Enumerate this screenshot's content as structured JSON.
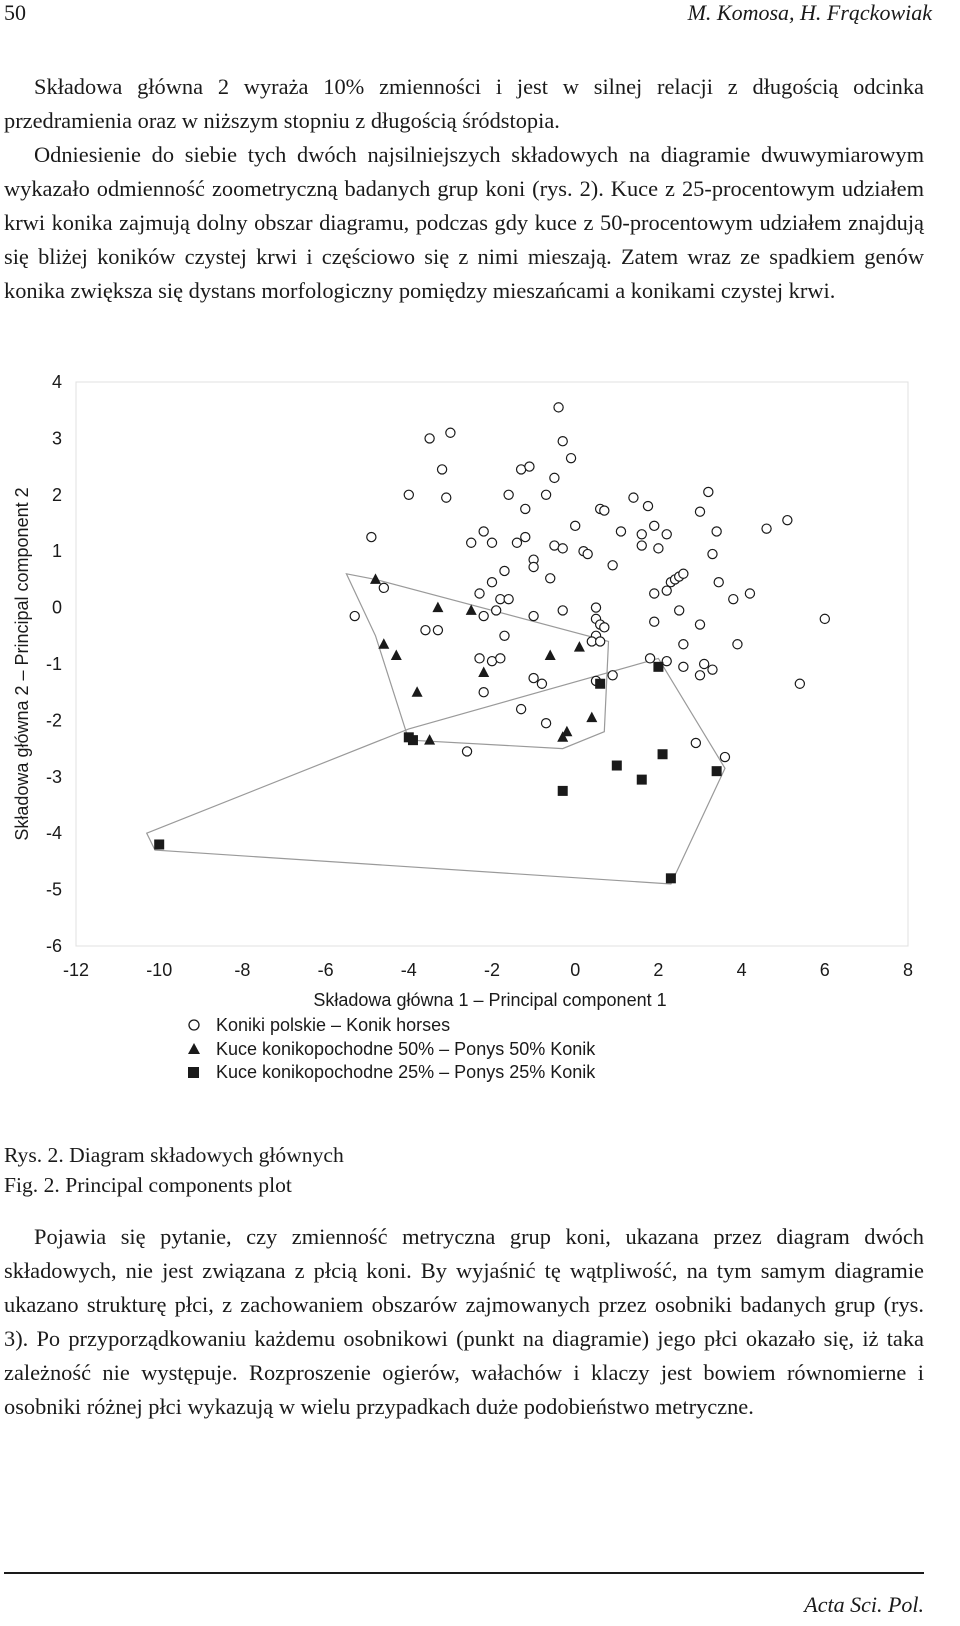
{
  "header": {
    "page_number": "50",
    "running_head": "M. Komosa, H. Frąckowiak"
  },
  "body": {
    "para1_lines": [
      "Składowa główna 2 wyraża 10% zmienności i jest w silnej relacji z długością odcinka przedramienia oraz w niższym stopniu z długością śródstopia.",
      "Odniesienie do siebie tych dwóch najsilniejszych składowych na diagramie dwuwymiarowym wykazało odmienność zoometryczną badanych grup koni (rys. 2). Kuce z 25-procentowym udziałem krwi konika zajmują dolny obszar diagramu, podczas gdy kuce z 50-procentowym udziałem znajdują się bliżej koników czystej krwi i częściowo się z nimi mieszają. Zatem wraz ze spadkiem genów konika zwiększa się dystans morfologiczny pomiędzy mieszańcami a konikami czystej krwi."
    ],
    "para2": "Pojawia się pytanie, czy zmienność metryczna grup koni, ukazana przez diagram dwóch składowych, nie jest związana z płcią koni. By wyjaśnić tę wątpliwość, na tym samym diagramie ukazano strukturę płci, z zachowaniem obszarów zajmowanych przez osobniki badanych grup (rys. 3). Po przyporządkowaniu każdemu osobnikowi (punkt na diagramie) jego płci okazało się, iż taka zależność nie występuje. Rozproszenie ogierów, wałachów i klaczy jest bowiem równomierne i osobniki różnej płci wykazują w wielu przypadkach duże podobieństwo metryczne."
  },
  "caption": {
    "pl": "Rys. 2. Diagram składowych głównych",
    "en": "Fig. 2. Principal components plot"
  },
  "footer": {
    "journal": "Acta Sci. Pol."
  },
  "chart_data": {
    "type": "scatter",
    "xlabel": "Składowa główna 1 – Principal  component 1",
    "ylabel": "Składowa główna 2 – Principal component 2",
    "xlim": [
      -12,
      8
    ],
    "ylim": [
      -6,
      4
    ],
    "xticks": [
      -12,
      -10,
      -8,
      -6,
      -4,
      -2,
      0,
      2,
      4,
      6,
      8
    ],
    "yticks": [
      4,
      3,
      2,
      1,
      0,
      -1,
      -2,
      -3,
      -4,
      -5,
      -6
    ],
    "grid": false,
    "legend_position": "bottom",
    "series": [
      {
        "name": "Koniki polskie – Konik horses",
        "marker": "circle-open",
        "points": [
          [
            -0.4,
            3.55
          ],
          [
            -3.5,
            3.0
          ],
          [
            -3.0,
            3.1
          ],
          [
            -0.3,
            2.95
          ],
          [
            -0.1,
            2.65
          ],
          [
            -3.2,
            2.45
          ],
          [
            -1.3,
            2.45
          ],
          [
            -1.1,
            2.5
          ],
          [
            -0.5,
            2.3
          ],
          [
            -4.0,
            2.0
          ],
          [
            -3.1,
            1.95
          ],
          [
            -1.6,
            2.0
          ],
          [
            -0.7,
            2.0
          ],
          [
            -1.2,
            1.75
          ],
          [
            0.6,
            1.75
          ],
          [
            0.7,
            1.72
          ],
          [
            1.4,
            1.95
          ],
          [
            1.75,
            1.8
          ],
          [
            3.2,
            2.05
          ],
          [
            3.0,
            1.7
          ],
          [
            5.1,
            1.55
          ],
          [
            4.6,
            1.4
          ],
          [
            3.4,
            1.35
          ],
          [
            1.1,
            1.35
          ],
          [
            0.0,
            1.45
          ],
          [
            1.6,
            1.3
          ],
          [
            1.9,
            1.45
          ],
          [
            2.2,
            1.3
          ],
          [
            -4.9,
            1.25
          ],
          [
            -2.2,
            1.35
          ],
          [
            -2.5,
            1.15
          ],
          [
            -2.0,
            1.15
          ],
          [
            -1.4,
            1.15
          ],
          [
            -1.2,
            1.25
          ],
          [
            -0.5,
            1.1
          ],
          [
            -0.3,
            1.05
          ],
          [
            0.2,
            1.0
          ],
          [
            0.3,
            0.95
          ],
          [
            1.6,
            1.1
          ],
          [
            2.0,
            1.05
          ],
          [
            3.3,
            0.95
          ],
          [
            -1.0,
            0.85
          ],
          [
            -1.0,
            0.72
          ],
          [
            -1.7,
            0.65
          ],
          [
            -0.6,
            0.52
          ],
          [
            0.9,
            0.75
          ],
          [
            3.45,
            0.45
          ],
          [
            -2.0,
            0.45
          ],
          [
            2.3,
            0.45
          ],
          [
            2.4,
            0.5
          ],
          [
            2.5,
            0.55
          ],
          [
            2.6,
            0.6
          ],
          [
            -4.6,
            0.35
          ],
          [
            -2.3,
            0.25
          ],
          [
            -1.8,
            0.15
          ],
          [
            -1.6,
            0.15
          ],
          [
            1.9,
            0.25
          ],
          [
            2.2,
            0.3
          ],
          [
            3.8,
            0.15
          ],
          [
            4.2,
            0.25
          ],
          [
            -1.9,
            -0.05
          ],
          [
            -2.2,
            -0.15
          ],
          [
            -1.0,
            -0.15
          ],
          [
            -0.3,
            -0.05
          ],
          [
            0.5,
            0.0
          ],
          [
            2.5,
            -0.05
          ],
          [
            0.5,
            -0.2
          ],
          [
            0.6,
            -0.3
          ],
          [
            0.7,
            -0.35
          ],
          [
            -5.3,
            -0.15
          ],
          [
            -3.6,
            -0.4
          ],
          [
            -3.3,
            -0.4
          ],
          [
            3.0,
            -0.3
          ],
          [
            1.9,
            -0.25
          ],
          [
            6.0,
            -0.2
          ],
          [
            -1.7,
            -0.5
          ],
          [
            0.5,
            -0.5
          ],
          [
            0.4,
            -0.6
          ],
          [
            0.6,
            -0.6
          ],
          [
            2.6,
            -0.65
          ],
          [
            3.9,
            -0.65
          ],
          [
            1.8,
            -0.9
          ],
          [
            2.2,
            -0.95
          ],
          [
            -2.3,
            -0.9
          ],
          [
            -2.0,
            -0.95
          ],
          [
            -1.8,
            -0.9
          ],
          [
            2.6,
            -1.05
          ],
          [
            3.1,
            -1.0
          ],
          [
            3.0,
            -1.2
          ],
          [
            3.3,
            -1.1
          ],
          [
            0.9,
            -1.2
          ],
          [
            0.5,
            -1.3
          ],
          [
            -1.0,
            -1.25
          ],
          [
            -0.8,
            -1.35
          ],
          [
            5.4,
            -1.35
          ],
          [
            -2.2,
            -1.5
          ],
          [
            -1.3,
            -1.8
          ],
          [
            -0.7,
            -2.05
          ],
          [
            -2.6,
            -2.55
          ],
          [
            2.9,
            -2.4
          ],
          [
            3.6,
            -2.65
          ]
        ]
      },
      {
        "name": "Kuce konikopochodne 50% – Ponys 50% Konik",
        "marker": "triangle-filled",
        "points": [
          [
            -4.8,
            0.5
          ],
          [
            -3.3,
            0.0
          ],
          [
            -2.5,
            -0.05
          ],
          [
            -4.6,
            -0.65
          ],
          [
            -4.3,
            -0.85
          ],
          [
            -3.8,
            -1.5
          ],
          [
            -2.2,
            -1.15
          ],
          [
            -0.6,
            -0.85
          ],
          [
            0.1,
            -0.7
          ],
          [
            0.4,
            -1.95
          ],
          [
            -0.2,
            -2.2
          ],
          [
            -0.3,
            -2.3
          ],
          [
            -3.5,
            -2.35
          ]
        ]
      },
      {
        "name": "Kuce konikopochodne 25% – Ponys 25% Konik",
        "marker": "square-filled",
        "points": [
          [
            -10.0,
            -4.2
          ],
          [
            -4.0,
            -2.3
          ],
          [
            -3.9,
            -2.35
          ],
          [
            2.0,
            -1.05
          ],
          [
            0.6,
            -1.35
          ],
          [
            2.1,
            -2.6
          ],
          [
            1.0,
            -2.8
          ],
          [
            1.6,
            -3.05
          ],
          [
            3.4,
            -2.9
          ],
          [
            -0.3,
            -3.25
          ],
          [
            2.3,
            -4.8
          ]
        ]
      }
    ],
    "hulls": [
      {
        "series": "Kuce konikopochodne 50% – Ponys 50% Konik",
        "vertices": [
          [
            -5.5,
            0.6
          ],
          [
            -4.8,
            0.5
          ],
          [
            0.8,
            -0.6
          ],
          [
            0.7,
            -2.2
          ],
          [
            -0.3,
            -2.5
          ],
          [
            -4.0,
            -2.35
          ],
          [
            -4.8,
            -0.5
          ]
        ]
      },
      {
        "series": "Kuce konikopochodne 25% – Ponys 25% Konik",
        "vertices": [
          [
            -10.3,
            -4.0
          ],
          [
            -4.0,
            -2.15
          ],
          [
            2.0,
            -0.9
          ],
          [
            3.6,
            -2.85
          ],
          [
            2.3,
            -4.9
          ],
          [
            -10.1,
            -4.3
          ]
        ]
      }
    ]
  }
}
